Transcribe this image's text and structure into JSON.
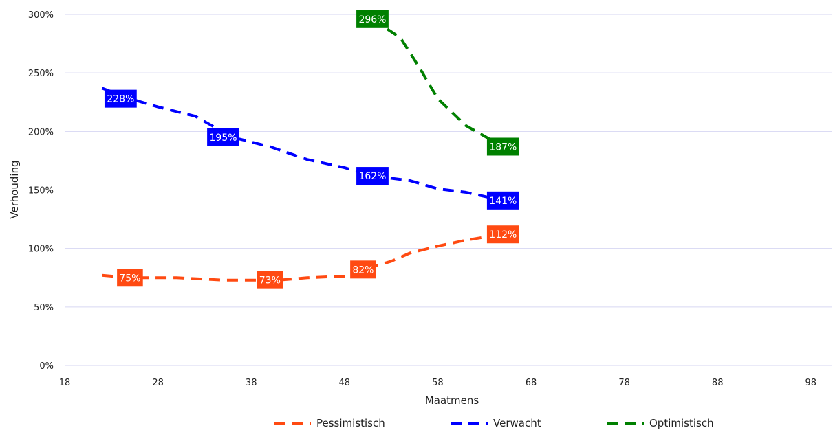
{
  "chart_data": {
    "type": "line",
    "title": "",
    "xlabel": "Maatmens",
    "ylabel": "Verhouding",
    "xlim": [
      18,
      100
    ],
    "ylim": [
      0,
      300
    ],
    "x_ticks": [
      18,
      28,
      38,
      48,
      58,
      68,
      78,
      88,
      98
    ],
    "x_tick_labels": [
      "18",
      "28",
      "38",
      "48",
      "58",
      "68",
      "78",
      "88",
      "98"
    ],
    "y_ticks": [
      0,
      50,
      100,
      150,
      200,
      250,
      300
    ],
    "y_tick_labels": [
      "0%",
      "50%",
      "100%",
      "150%",
      "200%",
      "250%",
      "300%"
    ],
    "grid": true,
    "legend_position": "bottom",
    "series": [
      {
        "name": "Pessimistisch",
        "color": "#ff4a12",
        "line_style": "dashed",
        "points": [
          [
            22,
            77
          ],
          [
            25,
            75
          ],
          [
            30,
            75
          ],
          [
            35,
            73
          ],
          [
            38,
            73
          ],
          [
            41,
            73
          ],
          [
            44,
            75
          ],
          [
            47,
            76
          ],
          [
            49,
            76
          ],
          [
            50,
            82
          ],
          [
            53,
            89
          ],
          [
            55,
            96
          ],
          [
            58,
            102
          ],
          [
            61,
            107
          ],
          [
            64,
            111
          ],
          [
            65,
            112
          ]
        ],
        "labels": [
          {
            "x": 25,
            "y": 75,
            "text": "75%"
          },
          {
            "x": 40,
            "y": 73,
            "text": "73%"
          },
          {
            "x": 50,
            "y": 82,
            "text": "82%"
          },
          {
            "x": 65,
            "y": 112,
            "text": "112%"
          }
        ]
      },
      {
        "name": "Verwacht",
        "color": "#0000ff",
        "line_style": "dashed",
        "points": [
          [
            22,
            237
          ],
          [
            25,
            228
          ],
          [
            28,
            221
          ],
          [
            32,
            213
          ],
          [
            36,
            195
          ],
          [
            40,
            187
          ],
          [
            44,
            176
          ],
          [
            48,
            169
          ],
          [
            51,
            162
          ],
          [
            55,
            158
          ],
          [
            58,
            151
          ],
          [
            61,
            148
          ],
          [
            65,
            141
          ]
        ],
        "labels": [
          {
            "x": 24,
            "y": 228,
            "text": "228%"
          },
          {
            "x": 35,
            "y": 195,
            "text": "195%"
          },
          {
            "x": 51,
            "y": 162,
            "text": "162%"
          },
          {
            "x": 65,
            "y": 141,
            "text": "141%"
          }
        ]
      },
      {
        "name": "Optimistisch",
        "color": "#008000",
        "line_style": "dashed",
        "points": [
          [
            51,
            296
          ],
          [
            54,
            280
          ],
          [
            56,
            255
          ],
          [
            58,
            228
          ],
          [
            61,
            205
          ],
          [
            65,
            187
          ]
        ],
        "labels": [
          {
            "x": 51,
            "y": 296,
            "text": "296%"
          },
          {
            "x": 65,
            "y": 187,
            "text": "187%"
          }
        ]
      }
    ]
  }
}
